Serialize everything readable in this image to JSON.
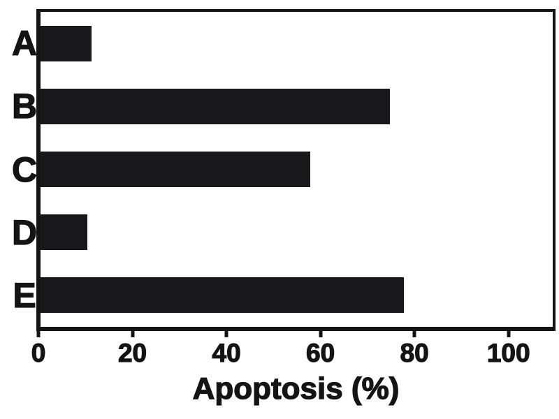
{
  "chart_data": {
    "type": "bar",
    "orientation": "horizontal",
    "title": "",
    "xlabel": "Apoptosis (%)",
    "ylabel": "",
    "categories": [
      "A",
      "B",
      "C",
      "D",
      "E"
    ],
    "values": [
      11,
      75,
      58,
      10,
      78
    ],
    "x_ticks": [
      0,
      20,
      40,
      60,
      80,
      100
    ],
    "xlim": [
      0,
      110
    ],
    "grid": false,
    "legend": false,
    "bar_color": "#18181b",
    "axis_color": "#141414",
    "background_color": "#ffffff"
  }
}
